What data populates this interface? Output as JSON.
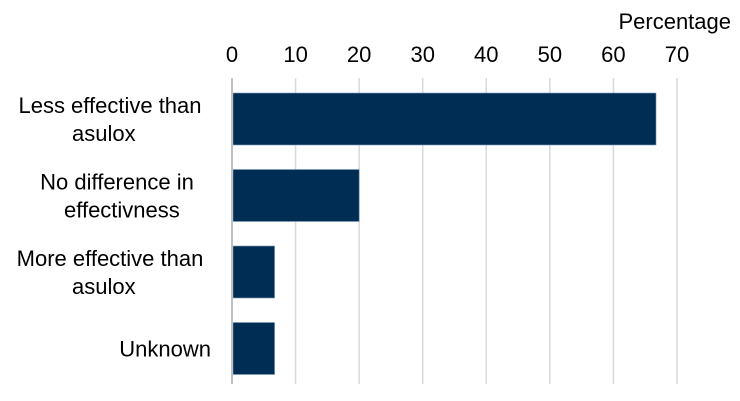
{
  "chart_data": {
    "type": "bar",
    "orientation": "horizontal",
    "xlabel": "Percentage",
    "xlim": [
      0,
      70
    ],
    "xticks": [
      0,
      10,
      20,
      30,
      40,
      50,
      60,
      70
    ],
    "x_axis_position": "top",
    "grid": true,
    "categories": [
      [
        "Less effective than",
        "asulox"
      ],
      [
        "No difference in",
        "effectivness"
      ],
      [
        "More effective than",
        "asulox"
      ],
      [
        "Unknown"
      ]
    ],
    "values": [
      66.7,
      20,
      6.7,
      6.7
    ],
    "bar_color": "#002d54"
  }
}
